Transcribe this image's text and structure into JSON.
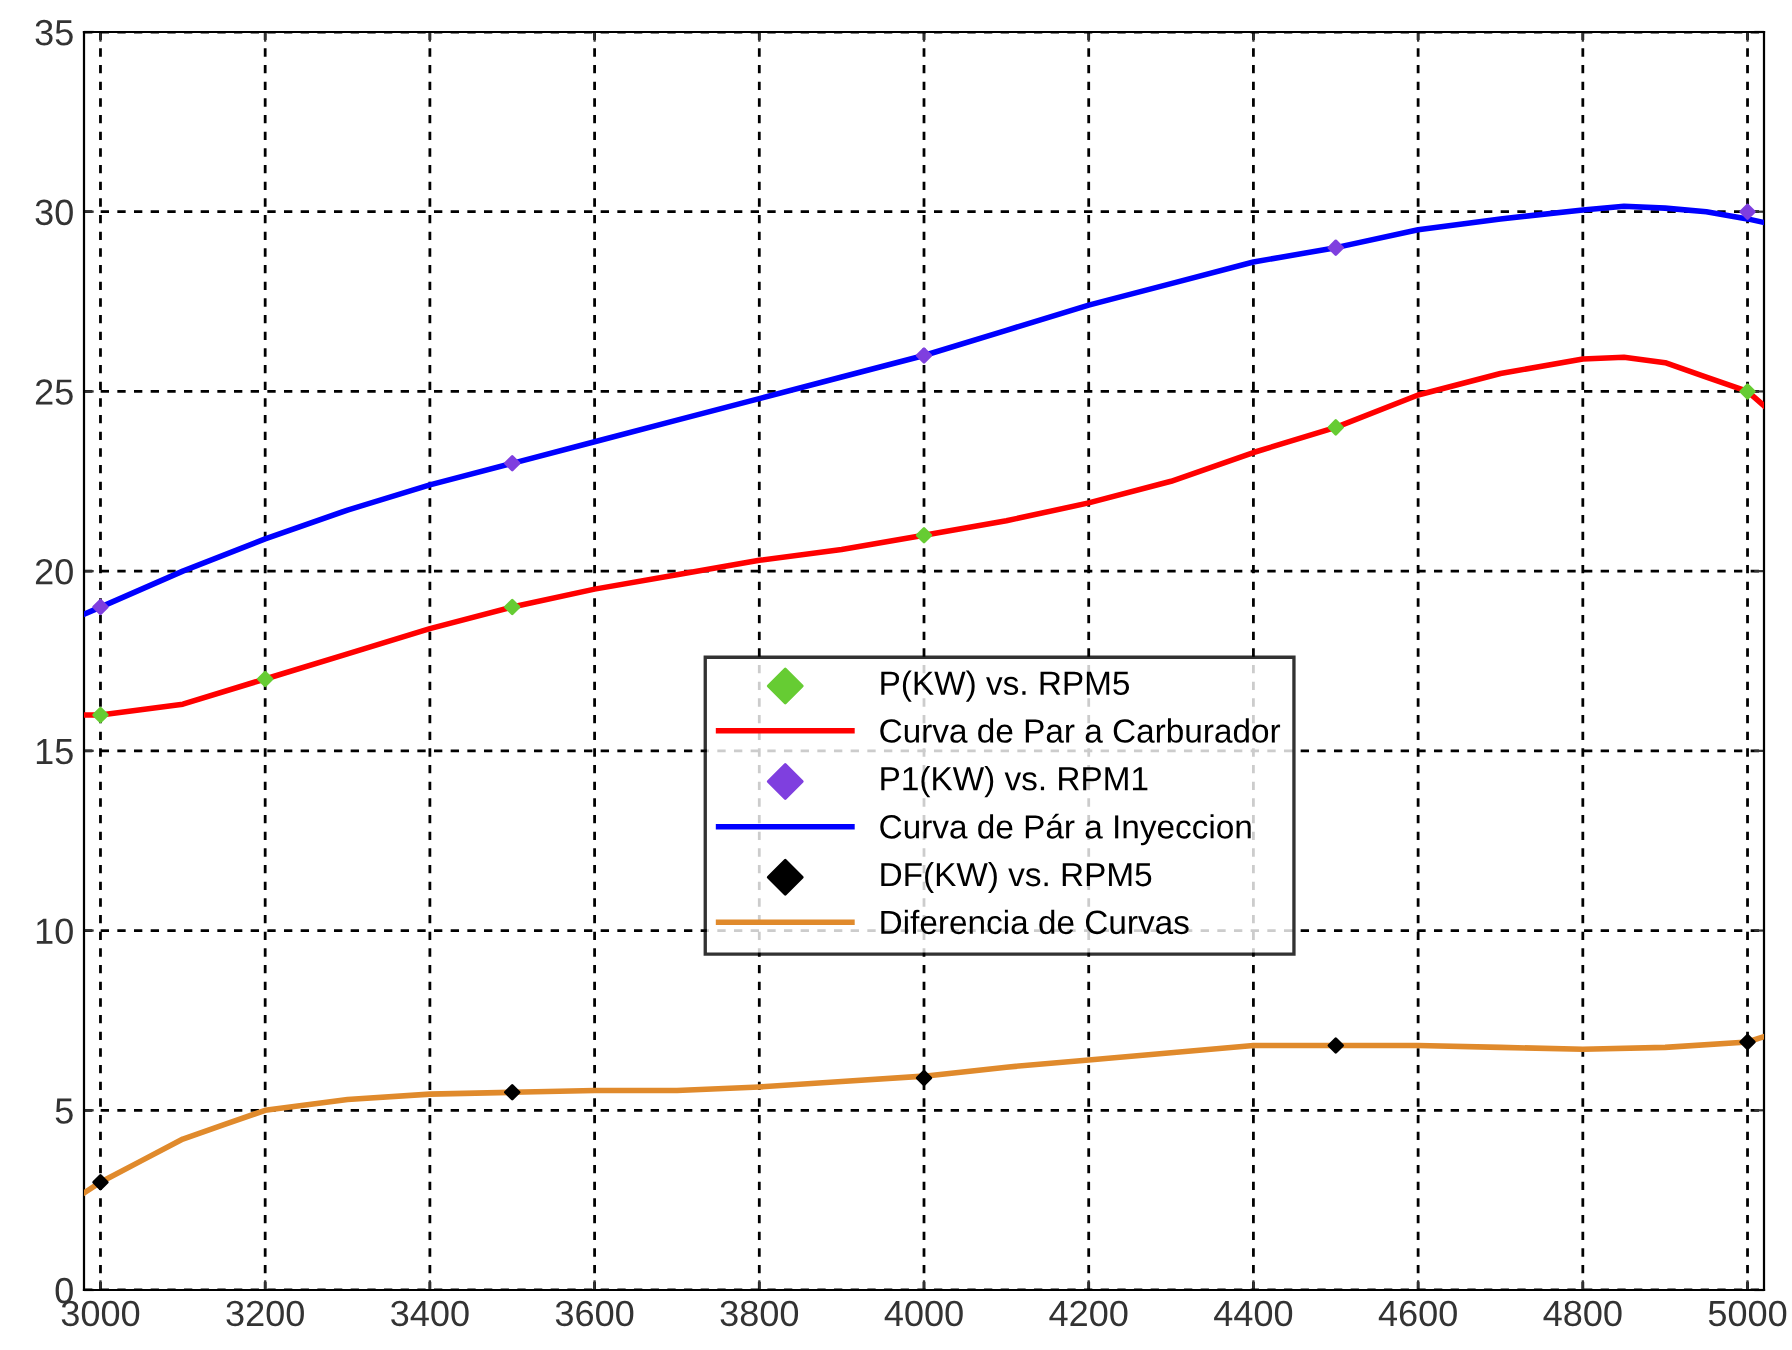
{
  "chart_data": {
    "type": "line",
    "xlim": [
      2980,
      5020
    ],
    "ylim": [
      0,
      35
    ],
    "xticks": [
      3000,
      3200,
      3400,
      3600,
      3800,
      4000,
      4200,
      4400,
      4600,
      4800,
      5000
    ],
    "yticks": [
      0,
      5,
      10,
      15,
      20,
      25,
      30,
      35
    ],
    "grid": true,
    "legend": "center",
    "series": [
      {
        "name": "P(KW) vs. RPM5",
        "type": "scatter",
        "marker": "diamond",
        "color": "#66cc33",
        "x": [
          3000,
          3200,
          3500,
          4000,
          4500,
          5000
        ],
        "values": [
          16,
          17,
          19,
          21,
          24,
          25
        ]
      },
      {
        "name": "Curva de Par a Carburador",
        "color": "#ff0000",
        "x": [
          2980,
          3000,
          3100,
          3200,
          3300,
          3400,
          3500,
          3600,
          3700,
          3800,
          3900,
          4000,
          4100,
          4200,
          4300,
          4400,
          4500,
          4600,
          4700,
          4800,
          4850,
          4900,
          4950,
          5000,
          5020
        ],
        "values": [
          16.0,
          16.0,
          16.3,
          17.0,
          17.7,
          18.4,
          19.0,
          19.5,
          19.9,
          20.3,
          20.6,
          21.0,
          21.4,
          21.9,
          22.5,
          23.3,
          24.0,
          24.9,
          25.5,
          25.9,
          25.95,
          25.8,
          25.4,
          25.0,
          24.6
        ]
      },
      {
        "name": "P1(KW) vs. RPM1",
        "type": "scatter",
        "marker": "diamond",
        "color": "#7f3fdf",
        "x": [
          3000,
          3500,
          4000,
          4500,
          5000
        ],
        "values": [
          19,
          23,
          26,
          29,
          30
        ]
      },
      {
        "name": "Curva de Pár a Inyeccion",
        "color": "#0000ff",
        "x": [
          2980,
          3000,
          3100,
          3200,
          3300,
          3400,
          3500,
          3600,
          3700,
          3800,
          3900,
          4000,
          4100,
          4200,
          4300,
          4400,
          4500,
          4600,
          4700,
          4800,
          4850,
          4900,
          4950,
          5000,
          5020
        ],
        "values": [
          18.8,
          19.0,
          20.0,
          20.9,
          21.7,
          22.4,
          23.0,
          23.6,
          24.2,
          24.8,
          25.4,
          26.0,
          26.7,
          27.4,
          28.0,
          28.6,
          29.0,
          29.5,
          29.8,
          30.05,
          30.15,
          30.1,
          30.0,
          29.8,
          29.7
        ]
      },
      {
        "name": "DF(KW) vs. RPM5",
        "type": "scatter",
        "marker": "diamond",
        "color": "#000000",
        "x": [
          3000,
          3500,
          4000,
          4500,
          5000
        ],
        "values": [
          3.0,
          5.5,
          5.9,
          6.8,
          6.9
        ]
      },
      {
        "name": "Diferencia de Curvas",
        "color": "#e08a2c",
        "x": [
          2980,
          3000,
          3050,
          3100,
          3150,
          3200,
          3300,
          3400,
          3500,
          3600,
          3700,
          3800,
          3900,
          4000,
          4100,
          4200,
          4300,
          4400,
          4500,
          4600,
          4700,
          4800,
          4900,
          5000,
          5020
        ],
        "values": [
          2.7,
          3.0,
          3.6,
          4.2,
          4.6,
          5.0,
          5.3,
          5.45,
          5.5,
          5.55,
          5.55,
          5.65,
          5.8,
          5.95,
          6.2,
          6.4,
          6.6,
          6.8,
          6.8,
          6.8,
          6.75,
          6.7,
          6.75,
          6.9,
          7.05
        ]
      }
    ]
  }
}
